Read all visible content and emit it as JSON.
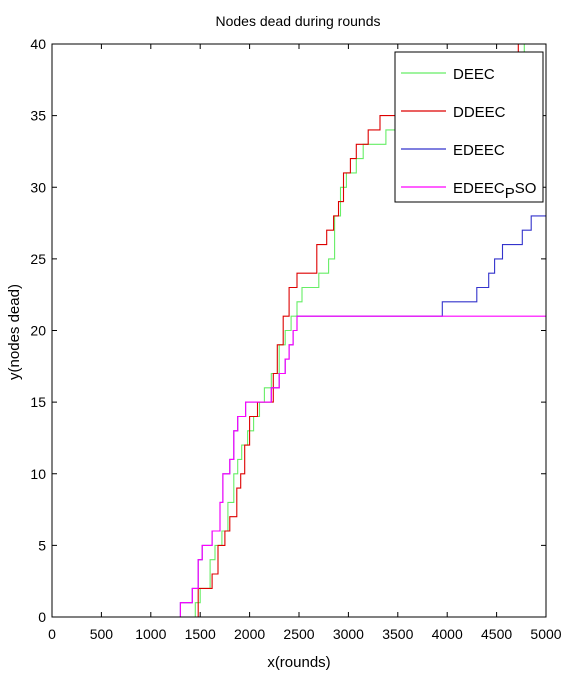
{
  "chart_data": {
    "type": "line",
    "title": "Nodes dead during rounds",
    "xlabel": "x(rounds)",
    "ylabel": "y(nodes dead)",
    "xlim": [
      0,
      5000
    ],
    "ylim": [
      0,
      40
    ],
    "xticks": [
      0,
      500,
      1000,
      1500,
      2000,
      2500,
      3000,
      3500,
      4000,
      4500,
      5000
    ],
    "yticks": [
      0,
      5,
      10,
      15,
      20,
      25,
      30,
      35,
      40
    ],
    "grid": false,
    "legend_position": "top-right",
    "series": [
      {
        "name": "DEEC",
        "color": "#66ee66",
        "step": true,
        "points": [
          [
            0,
            0
          ],
          [
            1450,
            0
          ],
          [
            1450,
            1
          ],
          [
            1500,
            1
          ],
          [
            1500,
            2
          ],
          [
            1600,
            2
          ],
          [
            1600,
            4
          ],
          [
            1650,
            4
          ],
          [
            1650,
            5
          ],
          [
            1720,
            5
          ],
          [
            1720,
            6
          ],
          [
            1780,
            6
          ],
          [
            1780,
            8
          ],
          [
            1840,
            8
          ],
          [
            1840,
            10
          ],
          [
            1880,
            10
          ],
          [
            1880,
            11
          ],
          [
            1920,
            11
          ],
          [
            1920,
            12
          ],
          [
            1980,
            12
          ],
          [
            1980,
            13
          ],
          [
            2040,
            13
          ],
          [
            2040,
            14
          ],
          [
            2100,
            14
          ],
          [
            2100,
            15
          ],
          [
            2150,
            15
          ],
          [
            2150,
            16
          ],
          [
            2220,
            16
          ],
          [
            2220,
            17
          ],
          [
            2300,
            17
          ],
          [
            2300,
            19
          ],
          [
            2360,
            19
          ],
          [
            2360,
            20
          ],
          [
            2420,
            20
          ],
          [
            2420,
            21
          ],
          [
            2480,
            21
          ],
          [
            2480,
            22
          ],
          [
            2530,
            22
          ],
          [
            2530,
            23
          ],
          [
            2700,
            23
          ],
          [
            2700,
            24
          ],
          [
            2800,
            24
          ],
          [
            2800,
            25
          ],
          [
            2860,
            25
          ],
          [
            2860,
            28
          ],
          [
            2920,
            28
          ],
          [
            2920,
            30
          ],
          [
            2980,
            30
          ],
          [
            2980,
            31
          ],
          [
            3080,
            31
          ],
          [
            3080,
            32
          ],
          [
            3150,
            32
          ],
          [
            3150,
            33
          ],
          [
            3380,
            33
          ],
          [
            3380,
            34
          ],
          [
            3500,
            34
          ],
          [
            3500,
            35
          ],
          [
            3700,
            35
          ],
          [
            3700,
            36
          ],
          [
            3850,
            36
          ],
          [
            3850,
            37
          ],
          [
            4200,
            37
          ],
          [
            4200,
            38
          ],
          [
            4600,
            38
          ],
          [
            4600,
            39
          ],
          [
            4780,
            39
          ],
          [
            4780,
            40
          ],
          [
            5000,
            40
          ]
        ]
      },
      {
        "name": "DDEEC",
        "color": "#dd0000",
        "step": true,
        "points": [
          [
            0,
            0
          ],
          [
            1480,
            0
          ],
          [
            1480,
            2
          ],
          [
            1620,
            2
          ],
          [
            1620,
            3
          ],
          [
            1680,
            3
          ],
          [
            1680,
            5
          ],
          [
            1750,
            5
          ],
          [
            1750,
            6
          ],
          [
            1800,
            6
          ],
          [
            1800,
            7
          ],
          [
            1870,
            7
          ],
          [
            1870,
            9
          ],
          [
            1910,
            9
          ],
          [
            1910,
            10
          ],
          [
            1950,
            10
          ],
          [
            1950,
            12
          ],
          [
            2000,
            12
          ],
          [
            2000,
            14
          ],
          [
            2080,
            14
          ],
          [
            2080,
            15
          ],
          [
            2240,
            15
          ],
          [
            2240,
            17
          ],
          [
            2280,
            17
          ],
          [
            2280,
            19
          ],
          [
            2340,
            19
          ],
          [
            2340,
            21
          ],
          [
            2400,
            21
          ],
          [
            2400,
            23
          ],
          [
            2480,
            23
          ],
          [
            2480,
            24
          ],
          [
            2680,
            24
          ],
          [
            2680,
            26
          ],
          [
            2780,
            26
          ],
          [
            2780,
            27
          ],
          [
            2850,
            27
          ],
          [
            2850,
            28
          ],
          [
            2900,
            28
          ],
          [
            2900,
            29
          ],
          [
            2950,
            29
          ],
          [
            2950,
            31
          ],
          [
            3020,
            31
          ],
          [
            3020,
            32
          ],
          [
            3080,
            32
          ],
          [
            3080,
            33
          ],
          [
            3200,
            33
          ],
          [
            3200,
            34
          ],
          [
            3320,
            34
          ],
          [
            3320,
            35
          ],
          [
            3500,
            35
          ],
          [
            3500,
            36
          ],
          [
            3700,
            36
          ],
          [
            3700,
            37
          ],
          [
            4200,
            37
          ],
          [
            4200,
            38
          ],
          [
            4600,
            38
          ],
          [
            4600,
            39
          ],
          [
            4720,
            39
          ],
          [
            4720,
            40
          ],
          [
            5000,
            40
          ]
        ]
      },
      {
        "name": "EDEEC",
        "color": "#3333cc",
        "step": true,
        "points": [
          [
            0,
            0
          ],
          [
            1300,
            0
          ],
          [
            1300,
            1
          ],
          [
            1420,
            1
          ],
          [
            1420,
            2
          ],
          [
            1480,
            2
          ],
          [
            1480,
            4
          ],
          [
            1520,
            4
          ],
          [
            1520,
            5
          ],
          [
            1620,
            5
          ],
          [
            1620,
            6
          ],
          [
            1700,
            6
          ],
          [
            1700,
            8
          ],
          [
            1730,
            8
          ],
          [
            1730,
            10
          ],
          [
            1800,
            10
          ],
          [
            1800,
            11
          ],
          [
            1840,
            11
          ],
          [
            1840,
            13
          ],
          [
            1880,
            13
          ],
          [
            1880,
            14
          ],
          [
            1960,
            14
          ],
          [
            1960,
            15
          ],
          [
            2220,
            15
          ],
          [
            2220,
            16
          ],
          [
            2300,
            16
          ],
          [
            2300,
            17
          ],
          [
            2360,
            17
          ],
          [
            2360,
            18
          ],
          [
            2400,
            18
          ],
          [
            2400,
            19
          ],
          [
            2440,
            19
          ],
          [
            2440,
            20
          ],
          [
            2480,
            20
          ],
          [
            2480,
            21
          ],
          [
            3950,
            21
          ],
          [
            3950,
            22
          ],
          [
            4300,
            22
          ],
          [
            4300,
            23
          ],
          [
            4420,
            23
          ],
          [
            4420,
            24
          ],
          [
            4480,
            24
          ],
          [
            4480,
            25
          ],
          [
            4560,
            25
          ],
          [
            4560,
            26
          ],
          [
            4760,
            26
          ],
          [
            4760,
            27
          ],
          [
            4850,
            27
          ],
          [
            4850,
            28
          ],
          [
            5000,
            28
          ]
        ]
      },
      {
        "name": "EDEEC_PSO",
        "color": "#ff00ff",
        "step": true,
        "points": [
          [
            0,
            0
          ],
          [
            1300,
            0
          ],
          [
            1300,
            1
          ],
          [
            1420,
            1
          ],
          [
            1420,
            2
          ],
          [
            1480,
            2
          ],
          [
            1480,
            4
          ],
          [
            1520,
            4
          ],
          [
            1520,
            5
          ],
          [
            1620,
            5
          ],
          [
            1620,
            6
          ],
          [
            1700,
            6
          ],
          [
            1700,
            8
          ],
          [
            1730,
            8
          ],
          [
            1730,
            10
          ],
          [
            1800,
            10
          ],
          [
            1800,
            11
          ],
          [
            1840,
            11
          ],
          [
            1840,
            13
          ],
          [
            1880,
            13
          ],
          [
            1880,
            14
          ],
          [
            1960,
            14
          ],
          [
            1960,
            15
          ],
          [
            2220,
            15
          ],
          [
            2220,
            16
          ],
          [
            2300,
            16
          ],
          [
            2300,
            17
          ],
          [
            2360,
            17
          ],
          [
            2360,
            18
          ],
          [
            2400,
            18
          ],
          [
            2400,
            19
          ],
          [
            2440,
            19
          ],
          [
            2440,
            20
          ],
          [
            2480,
            20
          ],
          [
            2480,
            21
          ],
          [
            5000,
            21
          ]
        ]
      }
    ],
    "legend": [
      {
        "base": "DEEC",
        "sub": "",
        "rest": ""
      },
      {
        "base": "DDEEC",
        "sub": "",
        "rest": ""
      },
      {
        "base": "EDEEC",
        "sub": "",
        "rest": ""
      },
      {
        "base": "EDEEC",
        "sub": "P",
        "rest": "SO"
      }
    ]
  }
}
